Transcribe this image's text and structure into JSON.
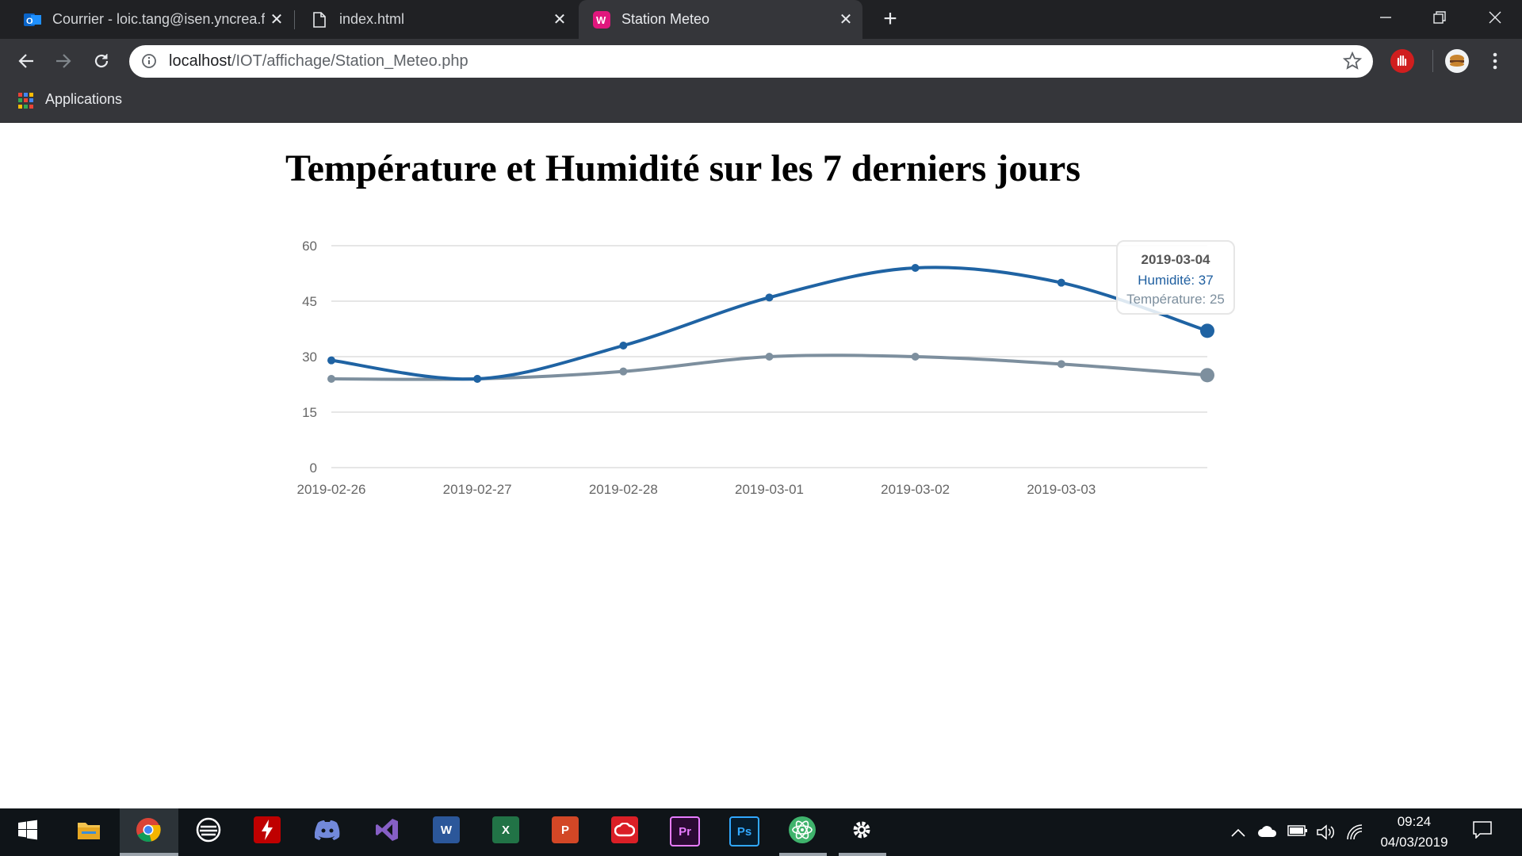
{
  "browser": {
    "tabs": [
      {
        "title": "Courrier - loic.tang@isen.yncrea.f",
        "icon": "outlook-icon",
        "active": false
      },
      {
        "title": "index.html",
        "icon": "file-icon",
        "active": false
      },
      {
        "title": "Station Meteo",
        "icon": "wamp-icon",
        "active": true
      }
    ],
    "new_tab_label": "+",
    "address": {
      "host": "localhost",
      "path": "/IOT/affichage/Station_Meteo.php"
    },
    "bookmarks": [
      {
        "label": "Applications",
        "icon": "apps-grid-icon"
      }
    ]
  },
  "page": {
    "title": "Température et Humidité sur les 7 derniers jours"
  },
  "chart_data": {
    "type": "line",
    "title": "",
    "curve": "smooth",
    "x": [
      "2019-02-26",
      "2019-02-27",
      "2019-02-28",
      "2019-03-01",
      "2019-03-02",
      "2019-03-03",
      "2019-03-04"
    ],
    "x_tick_labels": [
      "2019-02-26",
      "2019-02-27",
      "2019-02-28",
      "2019-03-01",
      "2019-03-02",
      "2019-03-03"
    ],
    "series": [
      {
        "name": "Humidité",
        "color": "#1f63a3",
        "values": [
          29,
          24,
          33,
          46,
          54,
          50,
          37
        ]
      },
      {
        "name": "Température",
        "color": "#7d8f9e",
        "values": [
          24,
          24,
          26,
          30,
          30,
          28,
          25
        ]
      }
    ],
    "ylim": [
      0,
      60
    ],
    "yticks": [
      0,
      15,
      30,
      45,
      60
    ],
    "grid": "horizontal",
    "legend": "none",
    "tooltip": {
      "date": "2019-03-04",
      "lines": [
        "Humidité: 37",
        "Température: 25"
      ]
    }
  },
  "taskbar": {
    "apps": [
      "windows-start-icon",
      "file-explorer-icon",
      "chrome-icon",
      "game-launcher-icon",
      "filezilla-icon",
      "discord-icon",
      "visual-studio-icon",
      "word-icon",
      "excel-icon",
      "powerpoint-icon",
      "creative-cloud-icon",
      "premiere-icon",
      "photoshop-icon",
      "atom-icon",
      "settings-icon"
    ],
    "time": "09:24",
    "date": "04/03/2019"
  }
}
